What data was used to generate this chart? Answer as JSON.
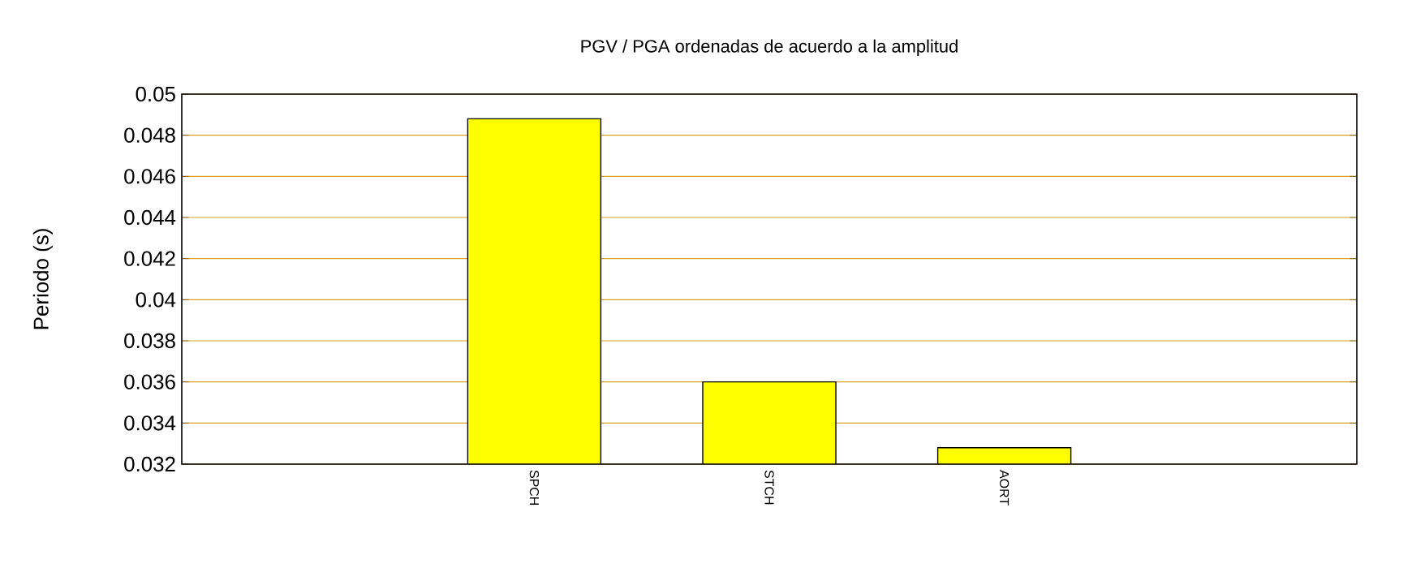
{
  "chart_data": {
    "type": "bar",
    "title": "PGV / PGA ordenadas de acuerdo a la amplitud",
    "ylabel": "Periodo (s)",
    "categories": [
      null,
      "SPCH",
      "STCH",
      "AORT",
      null
    ],
    "values": [
      null,
      0.0488,
      0.036,
      0.0328,
      null
    ],
    "color": "#ffff00",
    "ylim": [
      0.032,
      0.05
    ],
    "yticks": [
      0.032,
      0.034,
      0.036,
      0.038,
      0.04,
      0.042,
      0.044,
      0.046,
      0.048,
      0.05
    ],
    "grid": "y"
  }
}
